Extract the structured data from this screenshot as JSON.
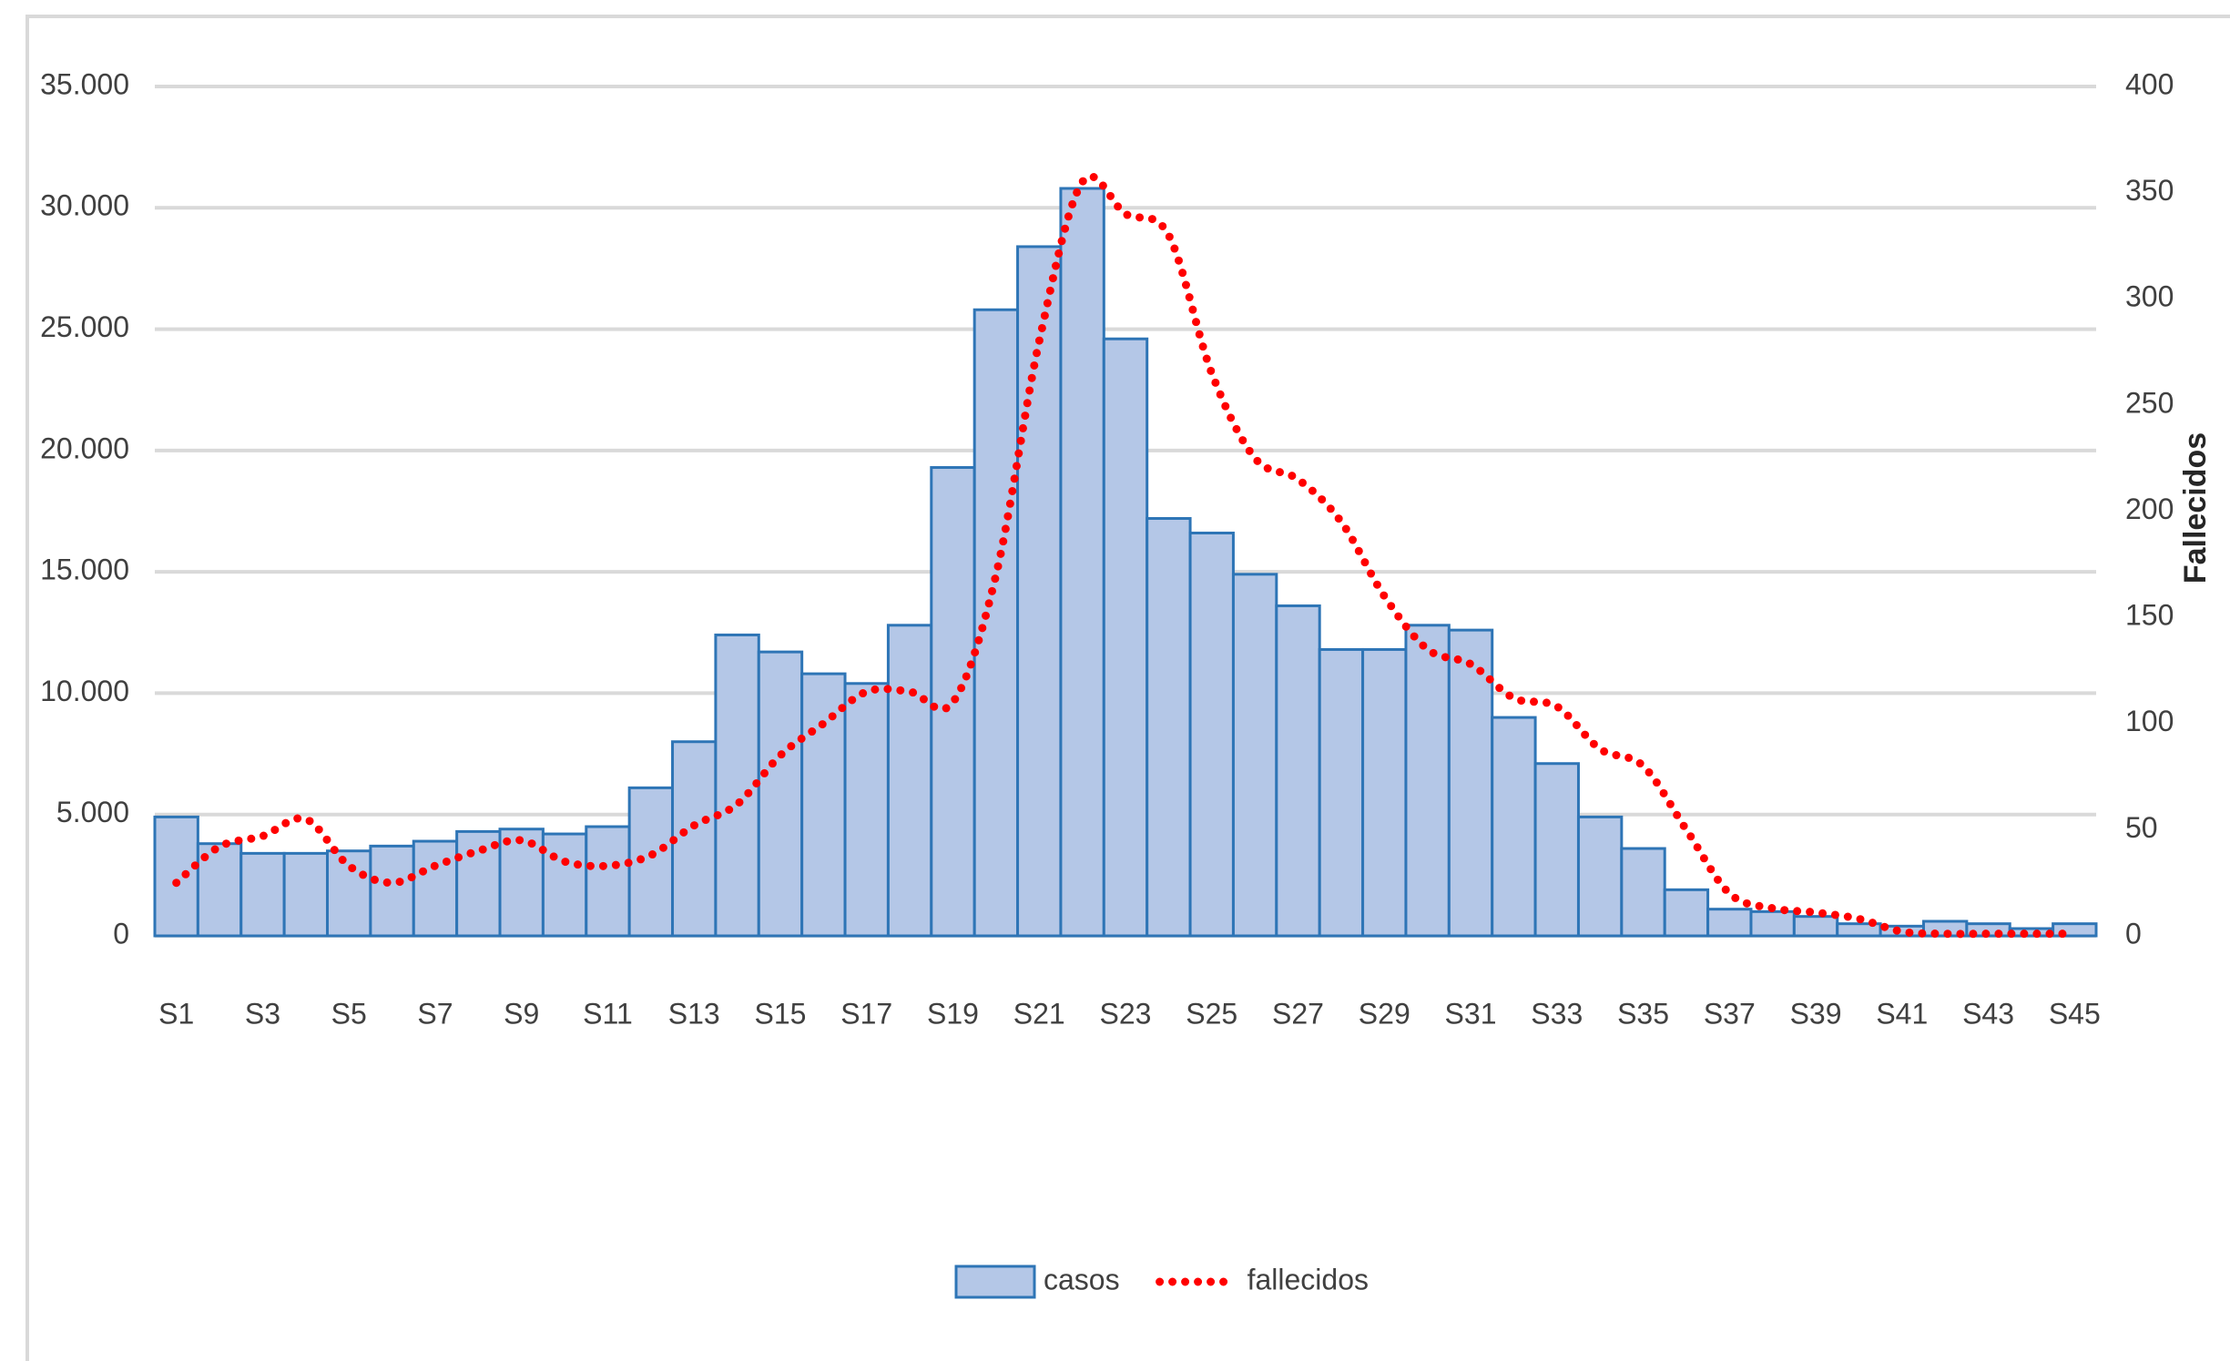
{
  "chart_data": {
    "type": "bar-line",
    "categories": [
      "S1",
      null,
      "S3",
      null,
      "S5",
      null,
      "S7",
      null,
      "S9",
      null,
      "S11",
      null,
      "S13",
      null,
      "S15",
      null,
      "S17",
      null,
      "S19",
      null,
      "S21",
      null,
      "S23",
      null,
      "S25",
      null,
      "S27",
      null,
      "S29",
      null,
      "S31",
      null,
      "S33",
      null,
      "S35",
      null,
      "S37",
      null,
      "S39",
      null,
      "S41",
      null,
      "S43",
      null,
      "S45"
    ],
    "series": [
      {
        "name": "casos",
        "type": "bar",
        "color": "#b4c7e7",
        "edge_color": "#2e75b6",
        "values": [
          4900,
          3800,
          3400,
          3400,
          3500,
          3700,
          3900,
          4300,
          4400,
          4200,
          4500,
          6100,
          8000,
          12400,
          11700,
          10800,
          10400,
          12800,
          19300,
          25800,
          28400,
          30800,
          24600,
          17200,
          16600,
          14900,
          13600,
          11800,
          11800,
          12800,
          12600,
          9000,
          7100,
          4900,
          3600,
          1900,
          1100,
          1000,
          800,
          500,
          400,
          600,
          500,
          300,
          500
        ]
      },
      {
        "name": "fallecidos",
        "type": "line",
        "axis": "y2",
        "color": "#ff0000",
        "line_style": "dotted",
        "values": [
          25,
          42,
          47,
          55,
          33,
          25,
          33,
          40,
          45,
          35,
          33,
          38,
          52,
          62,
          85,
          100,
          115,
          115,
          110,
          170,
          280,
          355,
          340,
          330,
          265,
          225,
          215,
          195,
          160,
          135,
          128,
          112,
          108,
          88,
          80,
          50,
          20,
          13,
          11,
          8,
          2,
          1,
          1,
          1,
          1
        ]
      }
    ],
    "ylim": [
      0,
      35000
    ],
    "yticks": [
      0,
      {
        "value": 5000,
        "label": "5.000"
      },
      {
        "value": 10000,
        "label": "10.000"
      },
      {
        "value": 15000,
        "label": "15.000"
      },
      {
        "value": 20000,
        "label": "20.000"
      },
      {
        "value": 25000,
        "label": "25.000"
      },
      {
        "value": 30000,
        "label": "30.000"
      },
      {
        "value": 35000,
        "label": "35.000"
      }
    ],
    "y2lim": [
      0,
      400
    ],
    "y2ticks": [
      0,
      50,
      100,
      150,
      200,
      250,
      300,
      350,
      400
    ],
    "y2label": "Fallecidos",
    "grid": true,
    "legend": "bottom"
  }
}
